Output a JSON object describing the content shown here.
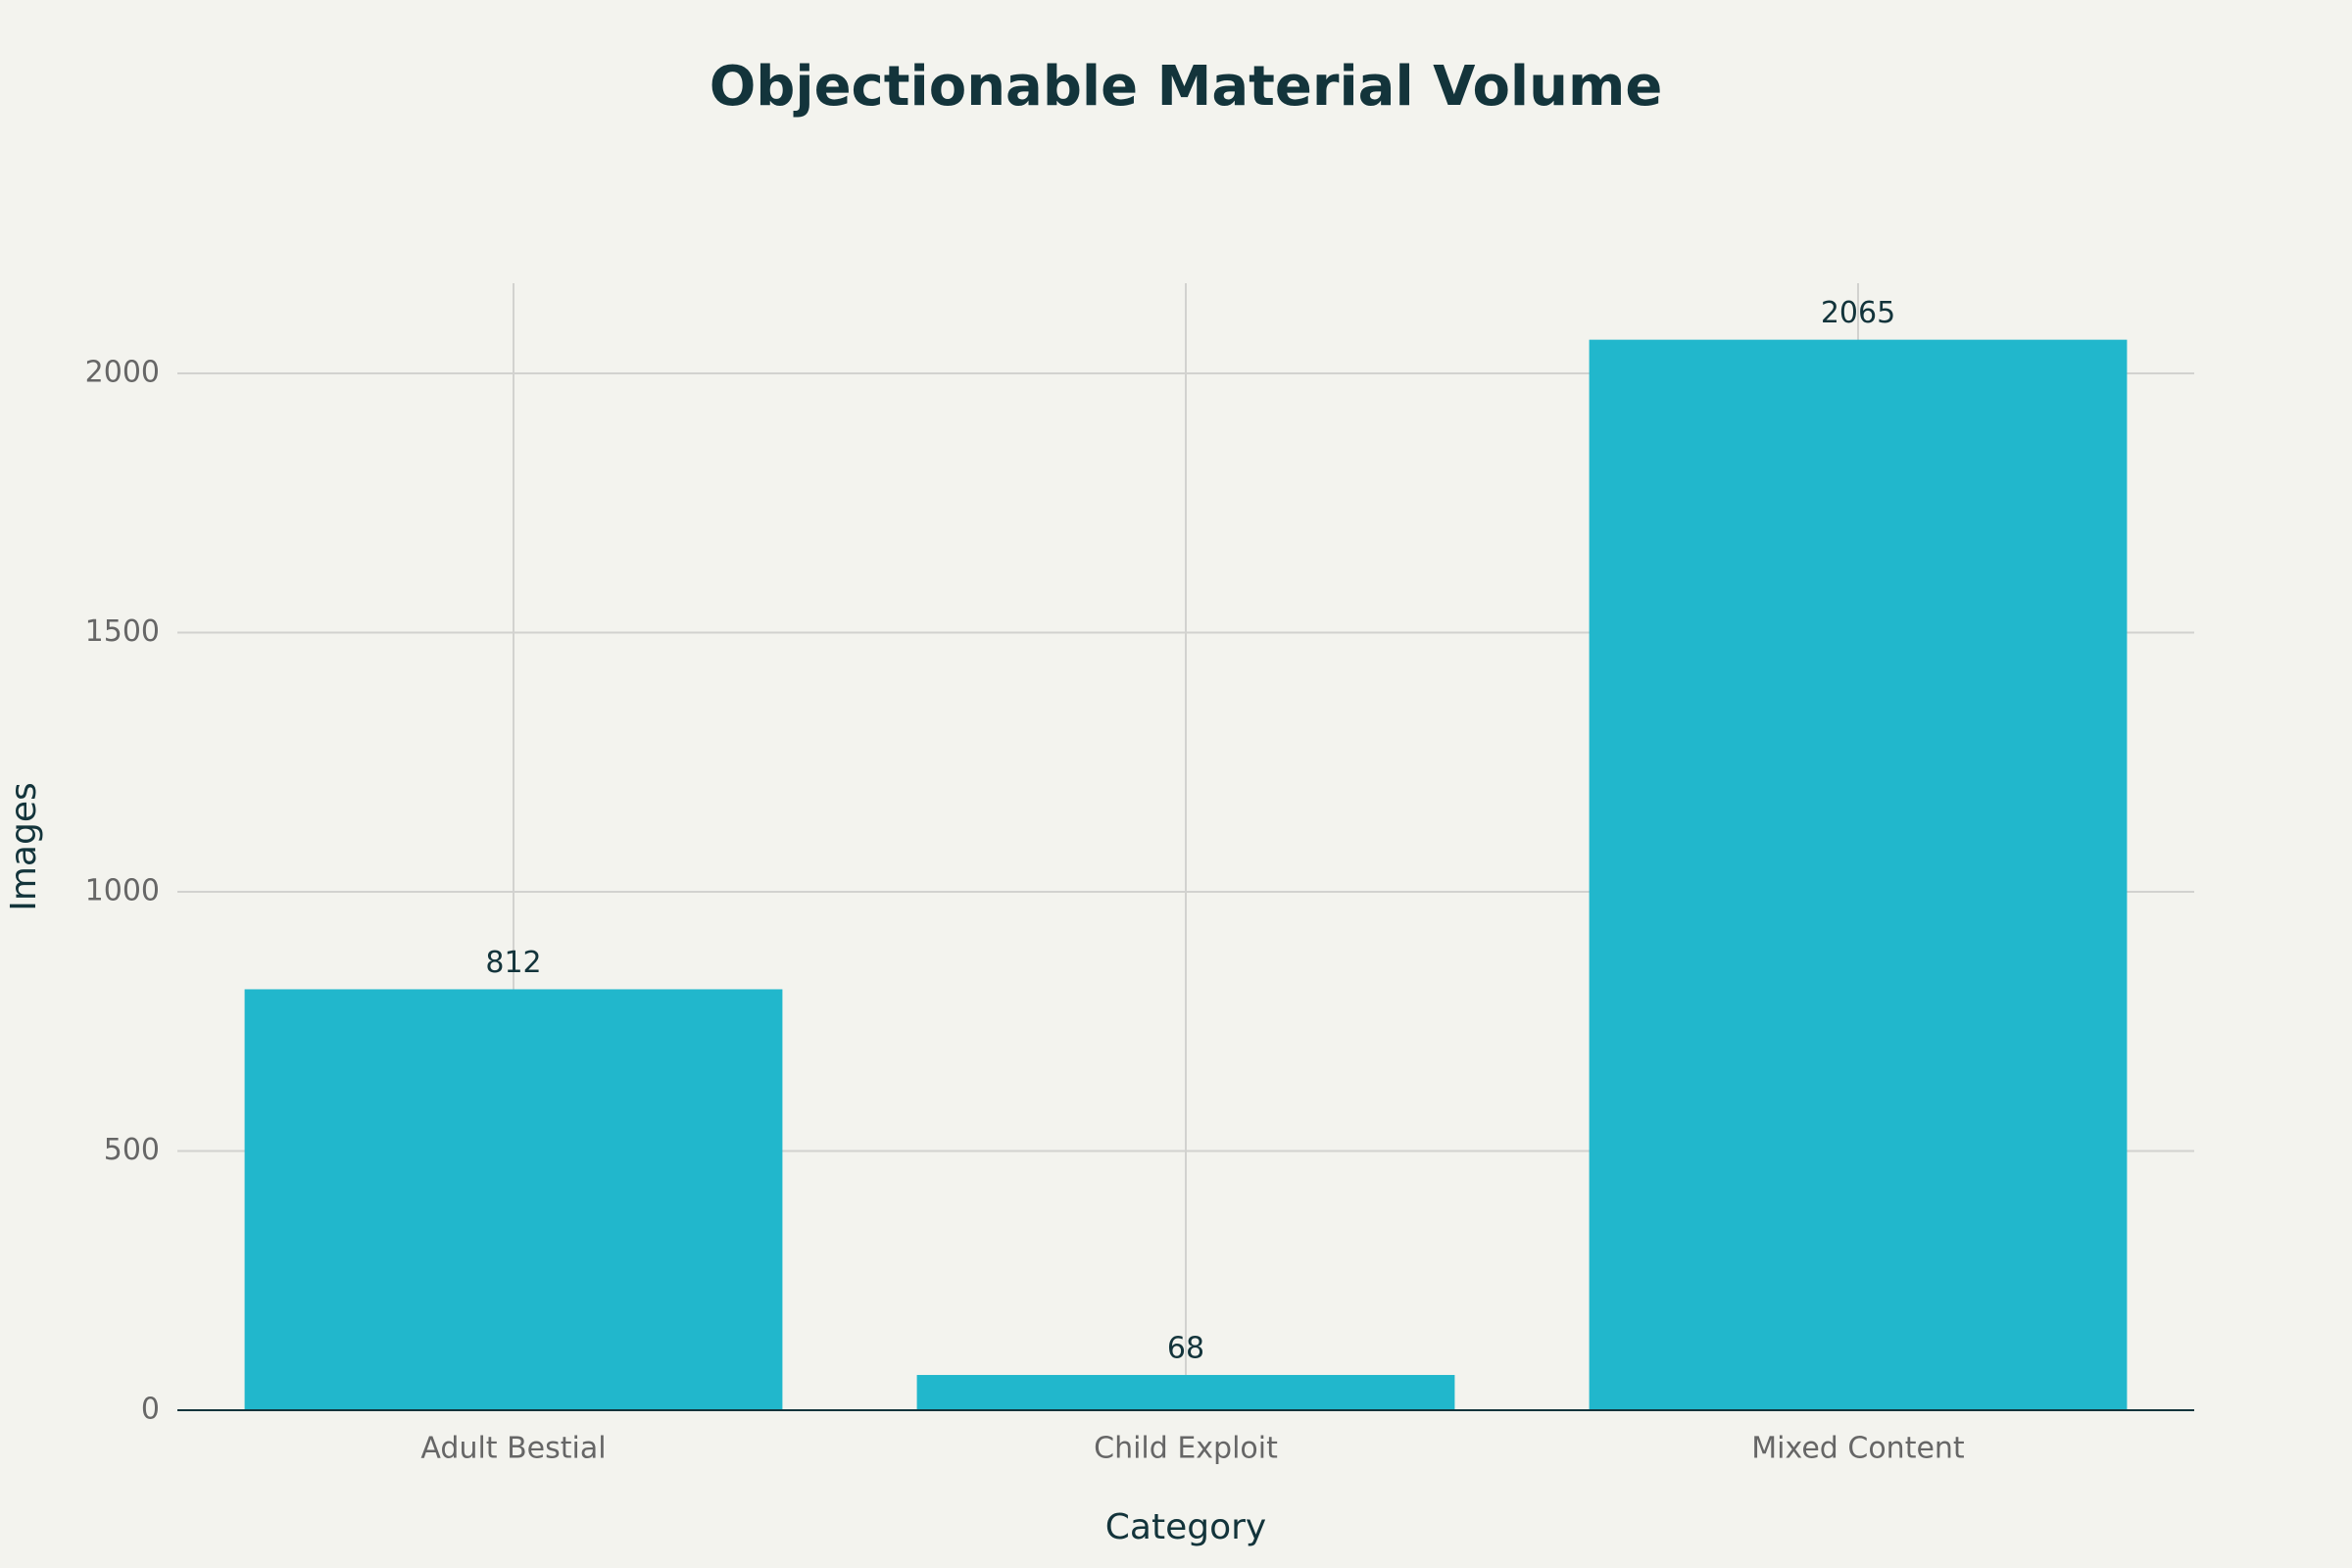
{
  "chart_data": {
    "type": "bar",
    "title": "Objectionable Material Volume",
    "x_label": "Category",
    "y_label": "Images",
    "categories": [
      "Adult Bestial",
      "Child Exploit",
      "Mixed Content"
    ],
    "values": [
      812,
      68,
      2065
    ],
    "color": "#21b7cc",
    "ylim": [
      0,
      2174
    ],
    "yticks": [
      0,
      500,
      1000,
      1500,
      2000
    ],
    "grid": true
  }
}
